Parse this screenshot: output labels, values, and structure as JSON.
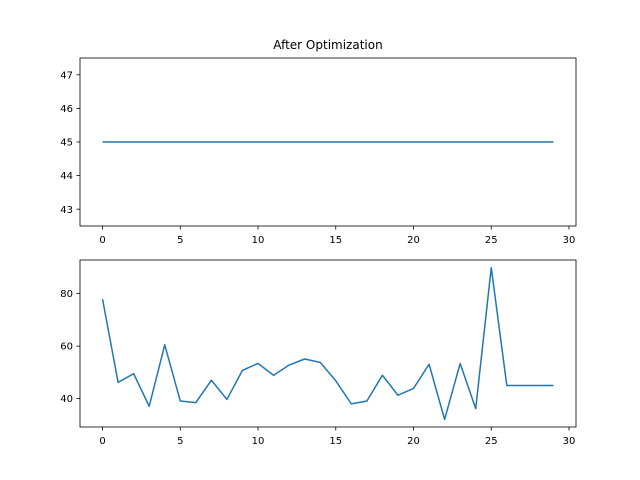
{
  "chart_data": [
    {
      "type": "line",
      "title": "After Optimization",
      "xlabel": "",
      "ylabel": "",
      "xlim": [
        -1.45,
        30.45
      ],
      "ylim": [
        42.5,
        47.5
      ],
      "xticks": [
        0,
        5,
        10,
        15,
        20,
        25,
        30
      ],
      "yticks": [
        43,
        44,
        45,
        46,
        47
      ],
      "grid": false,
      "color": "#1f77b4",
      "x": [
        0,
        1,
        2,
        3,
        4,
        5,
        6,
        7,
        8,
        9,
        10,
        11,
        12,
        13,
        14,
        15,
        16,
        17,
        18,
        19,
        20,
        21,
        22,
        23,
        24,
        25,
        26,
        27,
        28,
        29
      ],
      "values": [
        45,
        45,
        45,
        45,
        45,
        45,
        45,
        45,
        45,
        45,
        45,
        45,
        45,
        45,
        45,
        45,
        45,
        45,
        45,
        45,
        45,
        45,
        45,
        45,
        45,
        45,
        45,
        45,
        45,
        45
      ]
    },
    {
      "type": "line",
      "title": "",
      "xlabel": "",
      "ylabel": "",
      "xlim": [
        -1.45,
        30.45
      ],
      "ylim": [
        29.2,
        92.8
      ],
      "xticks": [
        0,
        5,
        10,
        15,
        20,
        25,
        30
      ],
      "yticks": [
        40,
        60,
        80
      ],
      "grid": false,
      "color": "#1f77b4",
      "x": [
        0,
        1,
        2,
        3,
        4,
        5,
        6,
        7,
        8,
        9,
        10,
        11,
        12,
        13,
        14,
        15,
        16,
        17,
        18,
        19,
        20,
        21,
        22,
        23,
        24,
        25,
        26,
        27,
        28,
        29
      ],
      "values": [
        77.9,
        46.2,
        49.5,
        37.1,
        60.5,
        39.1,
        38.5,
        47.0,
        39.7,
        50.8,
        53.4,
        48.9,
        52.8,
        55.1,
        53.8,
        46.8,
        38.0,
        39.1,
        48.9,
        41.3,
        43.9,
        53.1,
        32.1,
        53.4,
        36.2,
        89.9,
        45.0,
        45.0,
        45.0,
        45.0
      ]
    }
  ]
}
